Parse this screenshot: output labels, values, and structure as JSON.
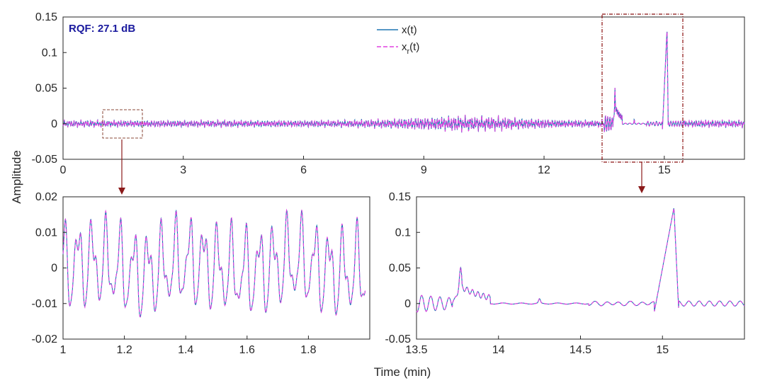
{
  "figure": {
    "ylabel": "Amplitude",
    "xlabel": "Time (min)",
    "annotation": "RQF: 27.1 dB",
    "legend": {
      "x_label": "x(t)",
      "xr_base": "x",
      "xr_sub": "r",
      "xr_tail": "(t)"
    },
    "colors": {
      "x": "#1f77b4",
      "xr": "#e040e0",
      "annotation": "#1a1a9e",
      "zoom_small": "#8b4a3a",
      "zoom_big": "#8b1010",
      "arrow": "#8b1a1a"
    }
  },
  "chart_data": [
    {
      "id": "top",
      "type": "line",
      "title": "",
      "xlabel": "",
      "ylabel": "Amplitude",
      "xlim": [
        0,
        17
      ],
      "ylim": [
        -0.05,
        0.15
      ],
      "xticks": [
        0,
        3,
        6,
        9,
        12,
        15
      ],
      "xtick_labels": [
        "0",
        "3",
        "6",
        "9",
        "12",
        "15"
      ],
      "yticks": [
        -0.05,
        0,
        0.05,
        0.1,
        0.15
      ],
      "ytick_labels": [
        "-0.05",
        "0",
        "0.05",
        "0.1",
        "0.15"
      ],
      "legend": "top-center",
      "series": [
        {
          "name": "x(t)",
          "style": "solid"
        },
        {
          "name": "x_r(t)",
          "style": "dashed"
        }
      ],
      "zoom_regions": [
        {
          "x": [
            1,
            2
          ],
          "y": [
            -0.02,
            0.02
          ]
        },
        {
          "x": [
            13.5,
            15.5
          ],
          "y": [
            -0.05,
            0.15
          ]
        }
      ]
    },
    {
      "id": "zoom1",
      "type": "line",
      "xlabel": "",
      "ylabel": "",
      "xlim": [
        1,
        2
      ],
      "ylim": [
        -0.02,
        0.02
      ],
      "xticks": [
        1,
        1.2,
        1.4,
        1.6,
        1.8
      ],
      "xtick_labels": [
        "1",
        "1.2",
        "1.4",
        "1.6",
        "1.8"
      ],
      "yticks": [
        -0.02,
        -0.01,
        0,
        0.01,
        0.02
      ],
      "ytick_labels": [
        "-0.02",
        "-0.01",
        "0",
        "0.01",
        "0.02"
      ],
      "series": [
        {
          "name": "x(t)"
        },
        {
          "name": "x_r(t)"
        }
      ]
    },
    {
      "id": "zoom2",
      "type": "line",
      "xlabel": "Time (min)",
      "ylabel": "",
      "xlim": [
        13.5,
        15.5
      ],
      "ylim": [
        -0.05,
        0.15
      ],
      "xticks": [
        13.5,
        14,
        14.5,
        15
      ],
      "xtick_labels": [
        "13.5",
        "14",
        "14.5",
        "15"
      ],
      "yticks": [
        -0.05,
        0,
        0.05,
        0.1,
        0.15
      ],
      "ytick_labels": [
        "-0.05",
        "0",
        "0.05",
        "0.1",
        "0.15"
      ],
      "series": [
        {
          "name": "x(t)"
        },
        {
          "name": "x_r(t)"
        }
      ]
    }
  ]
}
